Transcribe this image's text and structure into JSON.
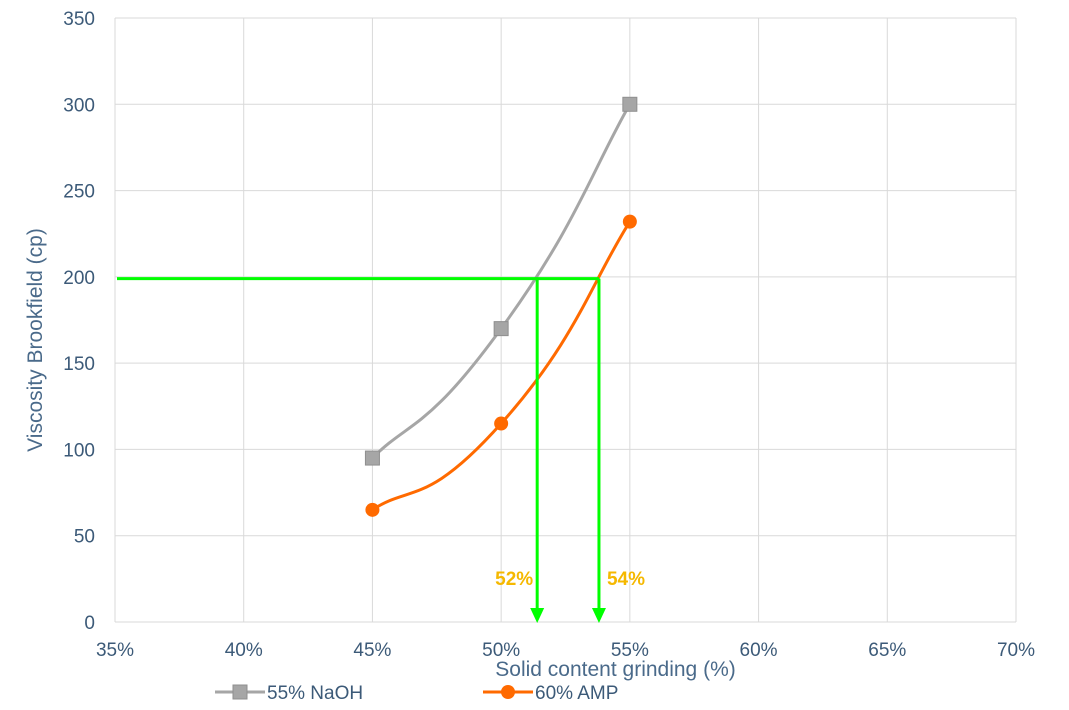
{
  "chart_data": {
    "type": "line",
    "title": "",
    "xlabel": "Solid content grinding (%)",
    "ylabel": "Viscosity Brookfield (cp)",
    "xlim": [
      35,
      70
    ],
    "ylim": [
      0,
      350
    ],
    "x_ticks": [
      "35%",
      "40%",
      "45%",
      "50%",
      "55%",
      "60%",
      "65%",
      "70%"
    ],
    "x_tick_values": [
      35,
      40,
      45,
      50,
      55,
      60,
      65,
      70
    ],
    "y_ticks": [
      "0",
      "50",
      "100",
      "150",
      "200",
      "250",
      "300",
      "350"
    ],
    "y_tick_values": [
      0,
      50,
      100,
      150,
      200,
      250,
      300,
      350
    ],
    "grid": true,
    "legend_position": "bottom",
    "series": [
      {
        "name": "55% NaOH",
        "color": "#a6a6a6",
        "marker": "square",
        "smooth": true,
        "x": [
          45,
          50,
          55
        ],
        "y": [
          95,
          170,
          300
        ]
      },
      {
        "name": "60% AMP",
        "color": "#ff6a00",
        "marker": "circle",
        "smooth": true,
        "x": [
          45,
          50,
          55
        ],
        "y": [
          65,
          115,
          232
        ]
      }
    ],
    "annotations": {
      "color": "#00ff00",
      "label_color": "#f5b800",
      "target_y": 199,
      "drops": [
        {
          "x": 51.4,
          "label": "52%"
        },
        {
          "x": 53.8,
          "label": "54%"
        }
      ]
    }
  }
}
